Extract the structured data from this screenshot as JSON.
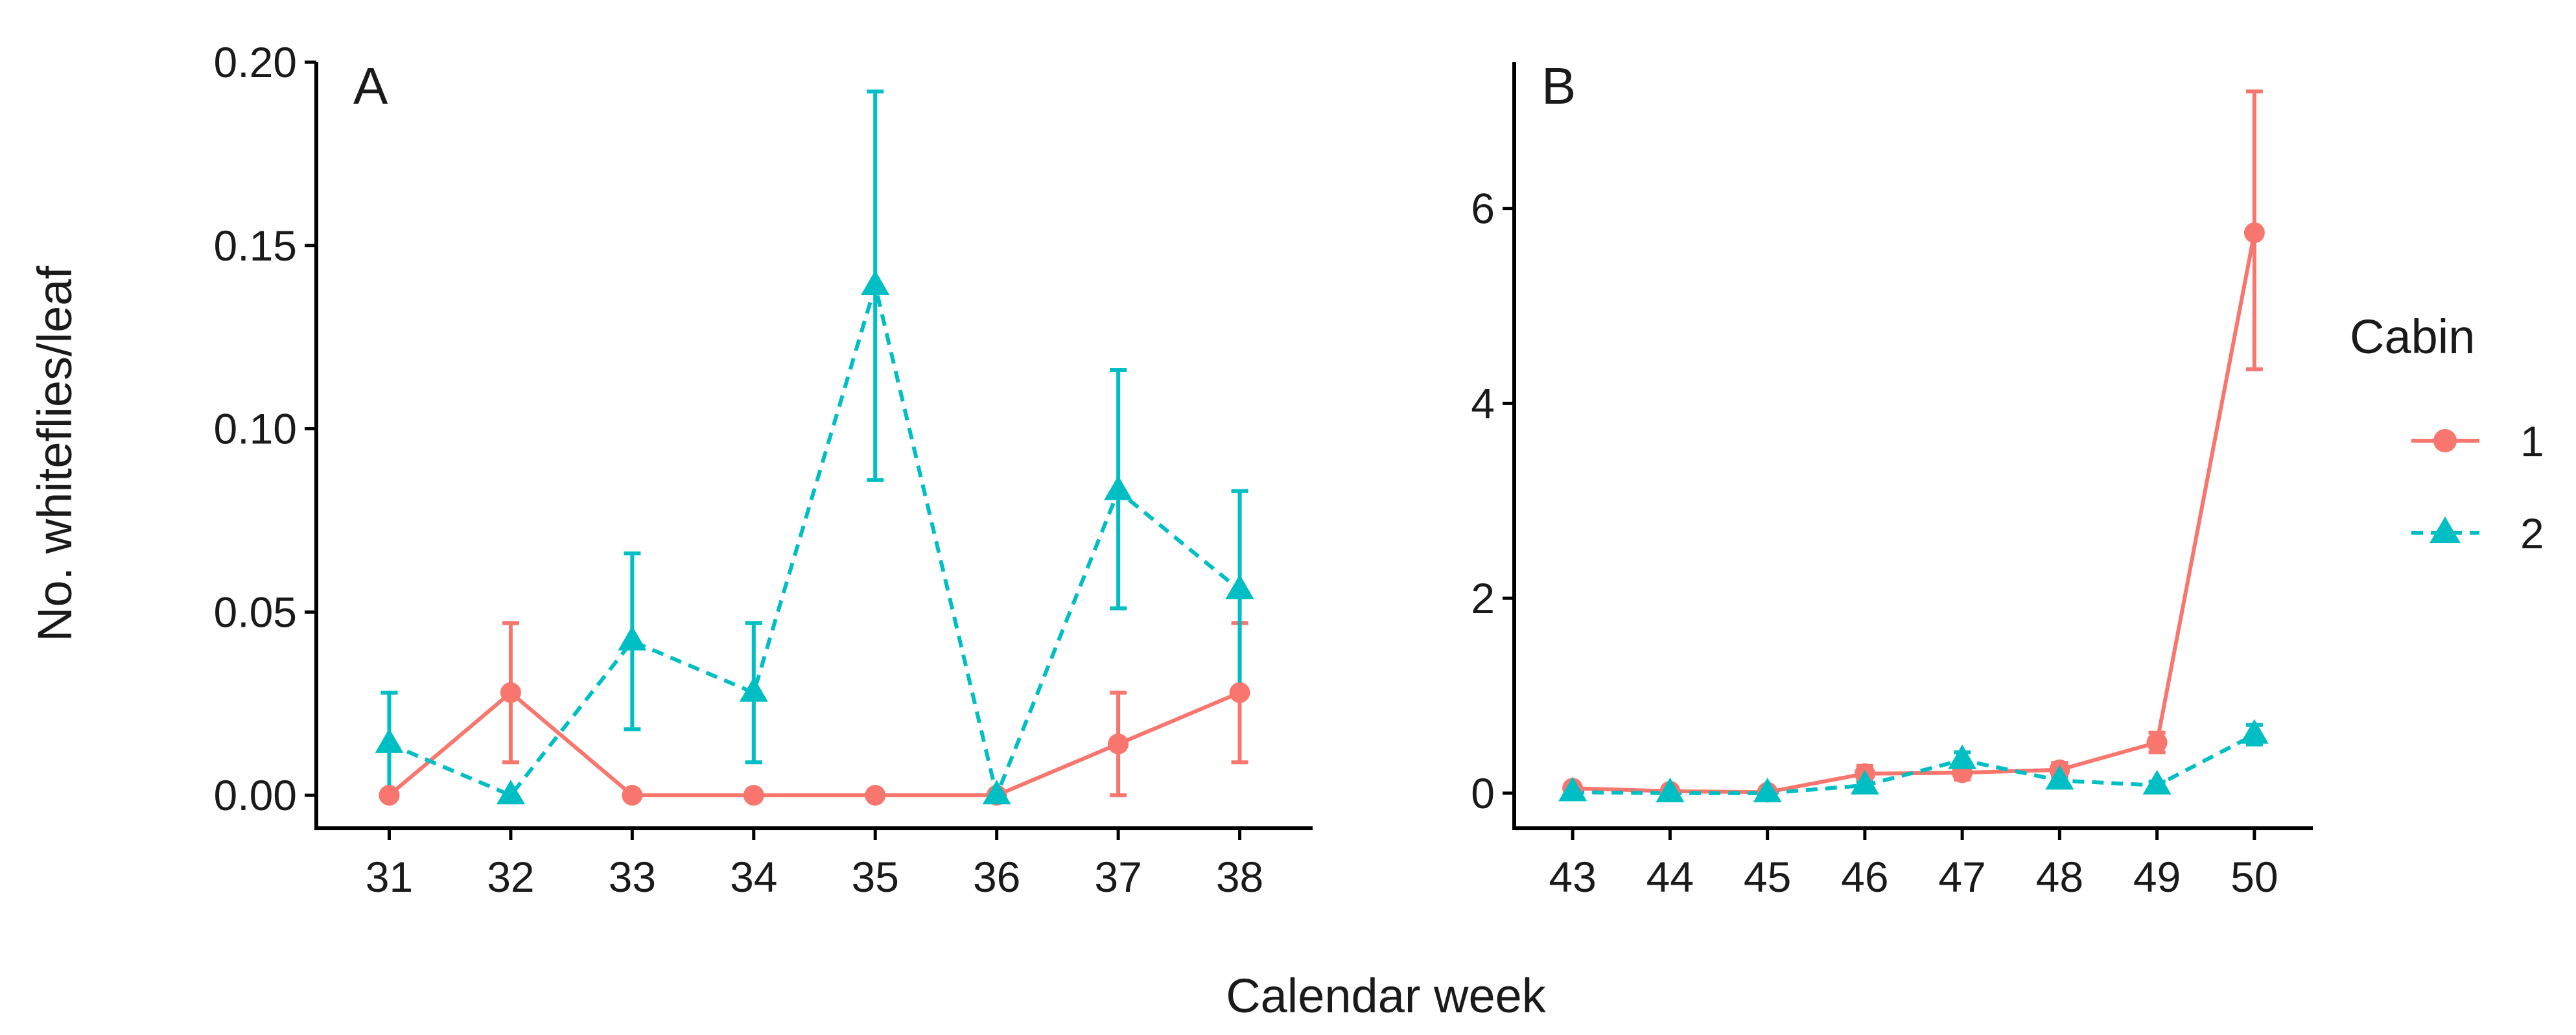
{
  "chart_data": [
    {
      "type": "line",
      "panel": "A",
      "x": [
        31,
        32,
        33,
        34,
        35,
        36,
        37,
        38
      ],
      "x_tick_labels": [
        "31",
        "32",
        "33",
        "34",
        "35",
        "36",
        "37",
        "38"
      ],
      "xlim": [
        30.4,
        38.6
      ],
      "ylim": [
        -0.009,
        0.2
      ],
      "y_ticks": [
        0,
        0.05,
        0.1,
        0.15,
        0.2
      ],
      "y_tick_labels": [
        "0.00",
        "0.05",
        "0.10",
        "0.15",
        "0.20"
      ],
      "series": [
        {
          "name": "1",
          "values": [
            0.0,
            0.028,
            0.0,
            0.0,
            0.0,
            0.0,
            0.014,
            0.028
          ],
          "error_low": [
            0.0,
            0.009,
            0.0,
            0.0,
            0.0,
            0.0,
            0.0,
            0.009
          ],
          "error_high": [
            0.0,
            0.047,
            0.0,
            0.0,
            0.0,
            0.0,
            0.028,
            0.047
          ]
        },
        {
          "name": "2",
          "values": [
            0.014,
            0.0,
            0.042,
            0.028,
            0.139,
            0.0,
            0.083,
            0.056
          ],
          "error_low": [
            0.0,
            0.0,
            0.018,
            0.009,
            0.086,
            0.0,
            0.051,
            0.028
          ],
          "error_high": [
            0.028,
            0.0,
            0.066,
            0.047,
            0.192,
            0.0,
            0.116,
            0.083
          ]
        }
      ]
    },
    {
      "type": "line",
      "panel": "B",
      "x": [
        43,
        44,
        45,
        46,
        47,
        48,
        49,
        50
      ],
      "x_tick_labels": [
        "43",
        "44",
        "45",
        "46",
        "47",
        "48",
        "49",
        "50"
      ],
      "xlim": [
        42.4,
        50.6
      ],
      "ylim": [
        -0.36,
        7.5
      ],
      "y_ticks": [
        0,
        2,
        4,
        6
      ],
      "y_tick_labels": [
        "0",
        "2",
        "4",
        "6"
      ],
      "series": [
        {
          "name": "1",
          "values": [
            0.05,
            0.02,
            0.01,
            0.2,
            0.21,
            0.24,
            0.52,
            5.75
          ],
          "error_low": [
            0.01,
            0.0,
            0.0,
            0.13,
            0.14,
            0.17,
            0.42,
            4.35
          ],
          "error_high": [
            0.09,
            0.05,
            0.03,
            0.28,
            0.29,
            0.31,
            0.62,
            7.2
          ]
        },
        {
          "name": "2",
          "values": [
            0.01,
            0.0,
            0.0,
            0.08,
            0.34,
            0.13,
            0.08,
            0.6
          ],
          "error_low": [
            0.0,
            0.0,
            0.0,
            0.04,
            0.26,
            0.08,
            0.04,
            0.5
          ],
          "error_high": [
            0.03,
            0.02,
            0.02,
            0.12,
            0.42,
            0.18,
            0.12,
            0.7
          ]
        }
      ]
    }
  ],
  "labels": {
    "ylabel": "No. whiteflies/leaf",
    "xlabel": "Calendar week",
    "panel_a": "A",
    "panel_b": "B"
  },
  "legend": {
    "title": "Cabin",
    "items": [
      {
        "label": "1",
        "marker": "circle",
        "line": "solid"
      },
      {
        "label": "2",
        "marker": "triangle",
        "line": "dashed"
      }
    ]
  },
  "colors": {
    "series_1": "#F8766D",
    "series_2": "#00BFC4",
    "axis": "#000000"
  }
}
